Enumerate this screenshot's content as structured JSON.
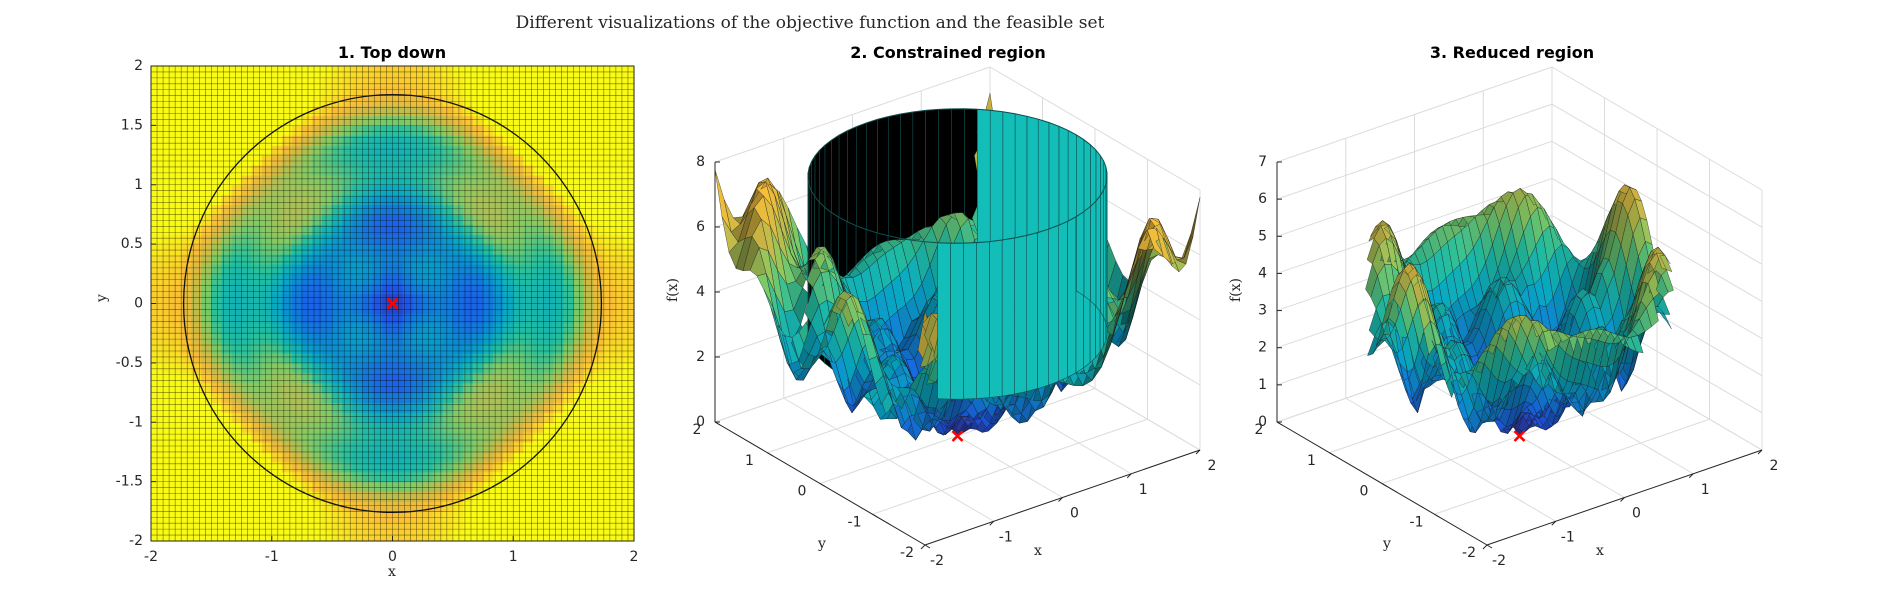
{
  "figure": {
    "suptitle": "Different visualizations of the objective function and the feasible set"
  },
  "chart_data": [
    {
      "type": "heatmap",
      "title": "1. Top down",
      "xlabel": "x",
      "ylabel": "y",
      "xlim": [
        -2,
        2
      ],
      "ylim": [
        -2,
        2
      ],
      "xticks": [
        -2,
        -1,
        0,
        1,
        2
      ],
      "xtick_labels": [
        "-2",
        "-1",
        "0",
        "1",
        "2"
      ],
      "yticks": [
        -2,
        -1.5,
        -1,
        -0.5,
        0,
        0.5,
        1,
        1.5,
        2
      ],
      "ytick_labels": [
        "-2",
        "-1.5",
        "-1",
        "-0.5",
        "0",
        "0.5",
        "1",
        "1.5",
        "2"
      ],
      "grid_resolution": 81,
      "colormap": "parula",
      "feasible_set": {
        "shape": "circle",
        "center": [
          0,
          0
        ],
        "radius": 1.73
      },
      "minimum_marker": {
        "x": 0,
        "y": 0,
        "symbol": "x",
        "color": "#ff0000"
      }
    },
    {
      "type": "surface",
      "title": "2. Constrained region",
      "xlabel": "x",
      "ylabel": "y",
      "zlabel": "f(x)",
      "xlim": [
        -2,
        2
      ],
      "ylim": [
        -2,
        2
      ],
      "zlim": [
        0,
        8
      ],
      "xtick_labels": [
        "-2",
        "-1",
        "0",
        "1",
        "2"
      ],
      "ytick_labels": [
        "-2",
        "-1",
        "0",
        "1",
        "2"
      ],
      "ztick_labels": [
        "0",
        "2",
        "4",
        "6",
        "8"
      ],
      "grid": true,
      "constraint_cylinder": {
        "radius": 1.73,
        "z_range": [
          3.2,
          8
        ],
        "color": "#13bdb8"
      },
      "minimum_marker": {
        "x": 0,
        "y": 0,
        "z": 0,
        "symbol": "x",
        "color": "#ff0000"
      }
    },
    {
      "type": "surface",
      "title": "3. Reduced region",
      "xlabel": "x",
      "ylabel": "y",
      "zlabel": "f(x)",
      "xlim": [
        -2,
        2
      ],
      "ylim": [
        -2,
        2
      ],
      "zlim": [
        0,
        7
      ],
      "xtick_labels": [
        "-2",
        "-1",
        "0",
        "1",
        "2"
      ],
      "ytick_labels": [
        "-2",
        "-1",
        "0",
        "1",
        "2"
      ],
      "ztick_labels": [
        "0",
        "1",
        "2",
        "3",
        "4",
        "5",
        "6",
        "7"
      ],
      "grid": true,
      "domain": {
        "shape": "disk",
        "radius": 1.73
      },
      "minimum_marker": {
        "x": 0,
        "y": 0,
        "z": 0,
        "symbol": "x",
        "color": "#ff0000"
      }
    }
  ]
}
